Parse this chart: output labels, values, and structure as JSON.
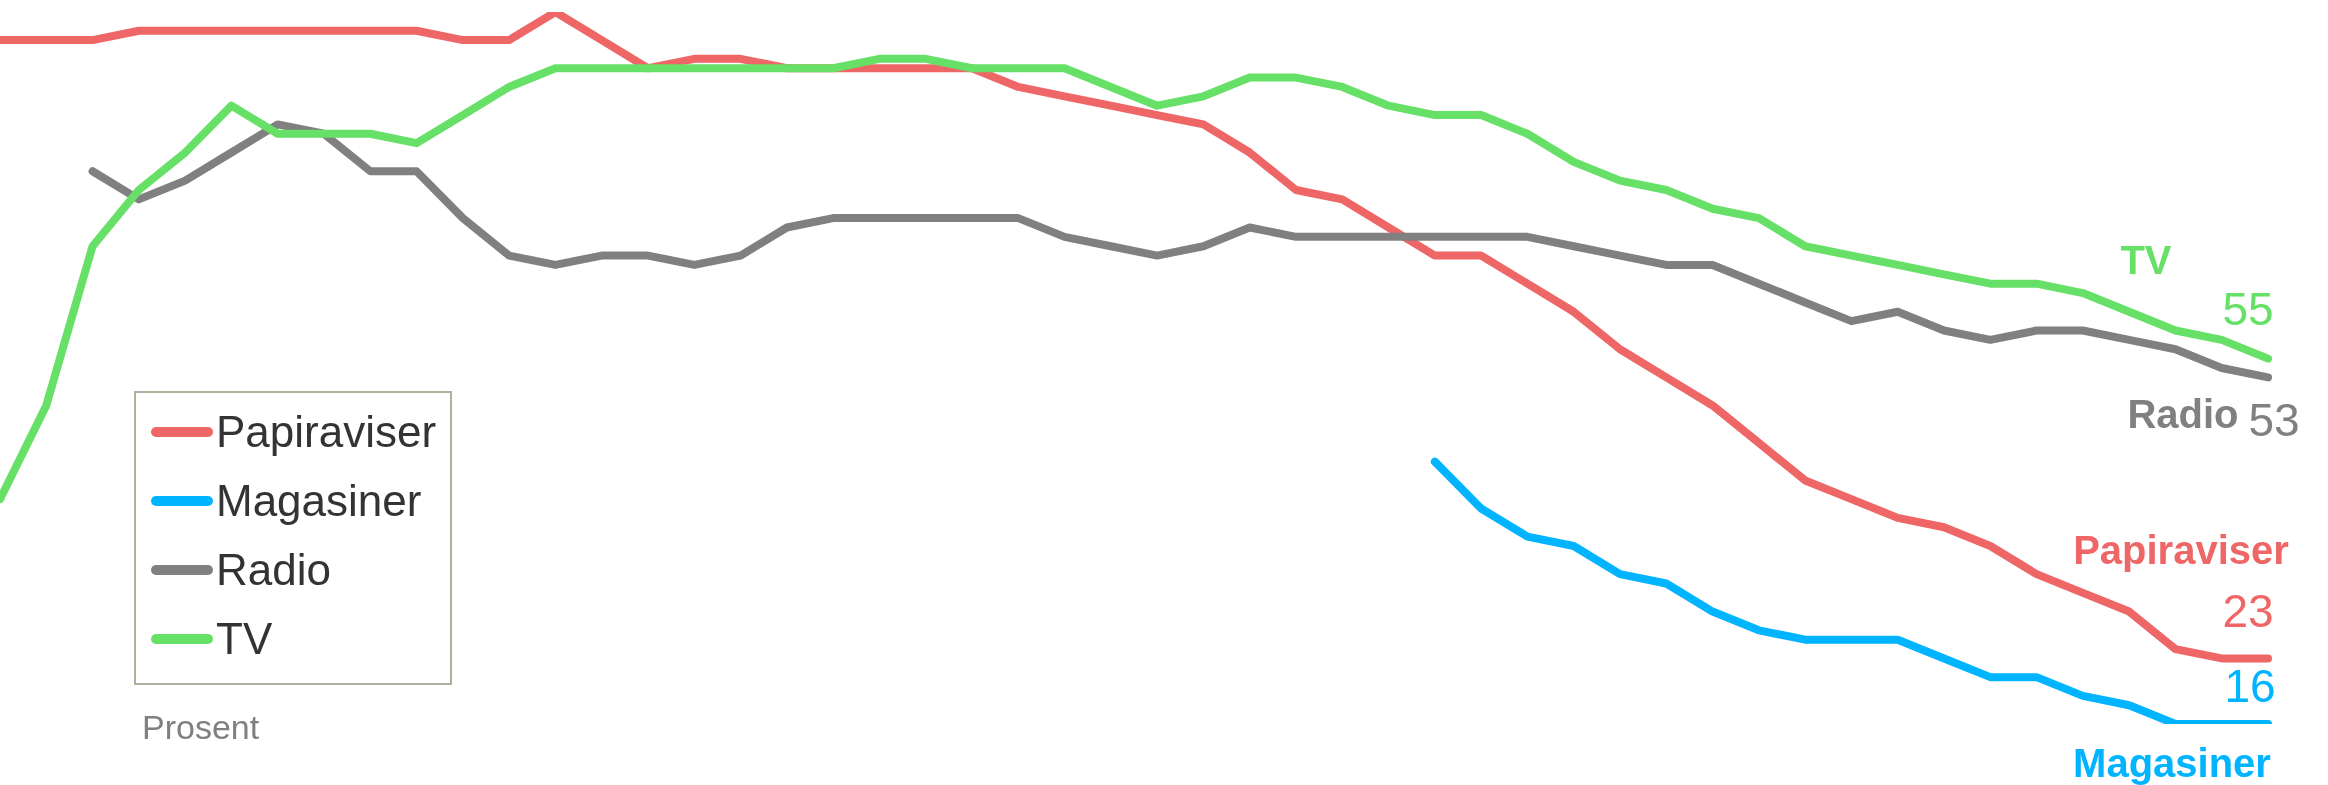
{
  "chart_data": {
    "type": "line",
    "annotations": [
      "Prosent"
    ],
    "legend": "bottom left",
    "grid": false,
    "marker": "none",
    "line_style": "solid",
    "categories": [
      null,
      null,
      null,
      null,
      null,
      null,
      null,
      null,
      null,
      null,
      null,
      null,
      null,
      null,
      null,
      null,
      null,
      null,
      null,
      null,
      null,
      null,
      null,
      null,
      null,
      null,
      null,
      null,
      null,
      null,
      null,
      null,
      null,
      null,
      null,
      null,
      null,
      null,
      null,
      null,
      null,
      null,
      null,
      null,
      null,
      null,
      null,
      null,
      null,
      null
    ],
    "series": [
      {
        "name": "Papiraviser",
        "color": "#ee6666",
        "values": [
          89,
          89,
          89,
          90,
          90,
          90,
          90,
          90,
          90,
          90,
          89,
          89,
          92,
          89,
          86,
          87,
          87,
          86,
          86,
          86,
          86,
          86,
          84,
          83,
          82,
          81,
          80,
          77,
          73,
          72,
          69,
          66,
          66,
          63,
          60,
          56,
          53,
          50,
          46,
          42,
          40,
          38,
          37,
          35,
          32,
          30,
          28,
          24,
          23,
          23
        ],
        "value_labels": [
          null,
          null,
          null,
          null,
          null,
          null,
          null,
          null,
          null,
          null,
          null,
          null,
          null,
          null,
          null,
          null,
          null,
          null,
          null,
          null,
          null,
          null,
          null,
          null,
          null,
          null,
          null,
          null,
          null,
          null,
          null,
          null,
          null,
          null,
          null,
          null,
          null,
          null,
          null,
          null,
          null,
          null,
          null,
          null,
          null,
          null,
          null,
          null,
          null,
          "23"
        ]
      },
      {
        "name": "Magasiner",
        "color": "#00b4ff",
        "values": [
          null,
          null,
          null,
          null,
          null,
          null,
          null,
          null,
          null,
          null,
          null,
          null,
          null,
          null,
          null,
          null,
          null,
          null,
          null,
          null,
          null,
          null,
          null,
          null,
          null,
          null,
          null,
          null,
          null,
          null,
          null,
          44,
          39,
          36,
          35,
          32,
          31,
          28,
          26,
          25,
          25,
          25,
          23,
          21,
          21,
          19,
          18,
          16,
          16,
          16
        ],
        "value_labels": [
          null,
          null,
          null,
          null,
          null,
          null,
          null,
          null,
          null,
          null,
          null,
          null,
          null,
          null,
          null,
          null,
          null,
          null,
          null,
          null,
          null,
          null,
          null,
          null,
          null,
          null,
          null,
          null,
          null,
          null,
          null,
          null,
          null,
          null,
          null,
          null,
          null,
          null,
          null,
          null,
          null,
          null,
          null,
          null,
          null,
          null,
          null,
          null,
          null,
          "16"
        ]
      },
      {
        "name": "Radio",
        "color": "#808080",
        "values": [
          null,
          null,
          75,
          72,
          74,
          77,
          80,
          79,
          75,
          75,
          70,
          66,
          65,
          66,
          66,
          65,
          66,
          69,
          70,
          70,
          70,
          70,
          70,
          68,
          67,
          66,
          67,
          69,
          68,
          68,
          68,
          68,
          68,
          68,
          67,
          66,
          65,
          65,
          63,
          61,
          59,
          60,
          58,
          57,
          58,
          58,
          57,
          56,
          54,
          53
        ],
        "value_labels": [
          null,
          null,
          null,
          null,
          null,
          null,
          null,
          null,
          null,
          null,
          null,
          null,
          null,
          null,
          null,
          null,
          null,
          null,
          null,
          null,
          null,
          null,
          null,
          null,
          null,
          null,
          null,
          null,
          null,
          null,
          null,
          null,
          null,
          null,
          null,
          null,
          null,
          null,
          null,
          null,
          null,
          null,
          null,
          null,
          null,
          null,
          null,
          null,
          null,
          "53"
        ]
      },
      {
        "name": "TV",
        "color": "#66e066",
        "values": [
          40,
          50,
          67,
          73,
          77,
          82,
          79,
          79,
          79,
          78,
          81,
          84,
          86,
          86,
          86,
          86,
          86,
          86,
          86,
          87,
          87,
          86,
          86,
          86,
          84,
          82,
          83,
          85,
          85,
          84,
          82,
          81,
          81,
          79,
          76,
          74,
          73,
          71,
          70,
          67,
          66,
          65,
          64,
          63,
          63,
          62,
          60,
          58,
          57,
          55
        ],
        "value_labels": [
          null,
          null,
          null,
          null,
          null,
          null,
          null,
          null,
          null,
          null,
          null,
          null,
          null,
          null,
          null,
          null,
          null,
          null,
          null,
          null,
          null,
          null,
          null,
          null,
          null,
          null,
          null,
          null,
          null,
          null,
          null,
          null,
          null,
          null,
          null,
          null,
          null,
          null,
          null,
          null,
          null,
          null,
          null,
          null,
          null,
          null,
          null,
          null,
          null,
          "55"
        ]
      }
    ]
  }
}
